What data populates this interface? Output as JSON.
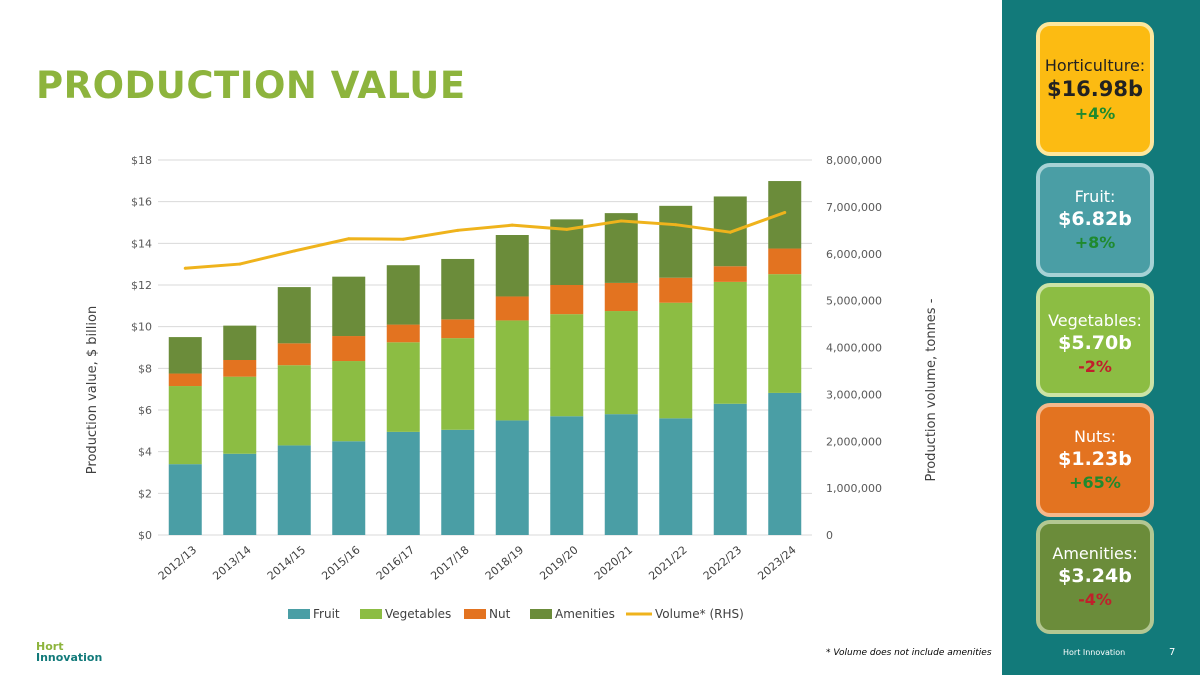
{
  "title": "PRODUCTION VALUE",
  "colors": {
    "title": "#8db43d",
    "fruit": "#4a9ea5",
    "vegetables": "#8cbd43",
    "nut": "#e37320",
    "amenities": "#6b8c3a",
    "volume": "#efb31c",
    "sidebar": "#127a7a",
    "positive": "#1f8a2e",
    "negative": "#c0202b"
  },
  "chart_data": {
    "type": "bar",
    "stacked": true,
    "categories": [
      "2012/13",
      "2013/14",
      "2014/15",
      "2015/16",
      "2016/17",
      "2017/18",
      "2018/19",
      "2019/20",
      "2020/21",
      "2021/22",
      "2022/23",
      "2023/24"
    ],
    "series": [
      {
        "name": "Fruit",
        "values": [
          3.4,
          3.9,
          4.3,
          4.5,
          4.95,
          5.05,
          5.5,
          5.7,
          5.8,
          5.6,
          6.3,
          6.82
        ]
      },
      {
        "name": "Vegetables",
        "values": [
          3.75,
          3.7,
          3.85,
          3.85,
          4.3,
          4.4,
          4.8,
          4.9,
          4.95,
          5.55,
          5.85,
          5.7
        ]
      },
      {
        "name": "Nut",
        "values": [
          0.6,
          0.8,
          1.05,
          1.2,
          0.85,
          0.9,
          1.15,
          1.4,
          1.35,
          1.2,
          0.75,
          1.23
        ]
      },
      {
        "name": "Amenities",
        "values": [
          1.75,
          1.65,
          2.7,
          2.85,
          2.85,
          2.9,
          2.95,
          3.15,
          3.35,
          3.45,
          3.35,
          3.24
        ]
      }
    ],
    "line_series": {
      "name": "Volume* (RHS)",
      "values": [
        5690000,
        5780000,
        6060000,
        6320000,
        6310000,
        6500000,
        6610000,
        6520000,
        6700000,
        6620000,
        6460000,
        6880000
      ]
    },
    "ylabel": "Production value, $ billion",
    "y2label": "Production volume, tonnes -",
    "ylim": [
      0,
      18
    ],
    "y2lim": [
      0,
      8000000
    ],
    "yticks": [
      "$0",
      "$2",
      "$4",
      "$6",
      "$8",
      "$10",
      "$12",
      "$14",
      "$16",
      "$18"
    ],
    "y2ticks": [
      "0",
      "1,000,000",
      "2,000,000",
      "3,000,000",
      "4,000,000",
      "5,000,000",
      "6,000,000",
      "7,000,000",
      "8,000,000"
    ],
    "legend_position": "bottom",
    "grid": true
  },
  "cards": [
    {
      "label": "Horticulture:",
      "value": "$16.98b",
      "change": "+4%",
      "positive": true
    },
    {
      "label": "Fruit:",
      "value": "$6.82b",
      "change": "+8%",
      "positive": true
    },
    {
      "label": "Vegetables:",
      "value": "$5.70b",
      "change": "-2%",
      "positive": false
    },
    {
      "label": "Nuts:",
      "value": "$1.23b",
      "change": "+65%",
      "positive": true
    },
    {
      "label": "Amenities:",
      "value": "$3.24b",
      "change": "-4%",
      "positive": false
    }
  ],
  "footnote": "* Volume does not include amenities",
  "logo": {
    "line1": "Hort",
    "line2": "Innovation"
  },
  "footer_brand": "Hort Innovation",
  "page_number": "7"
}
